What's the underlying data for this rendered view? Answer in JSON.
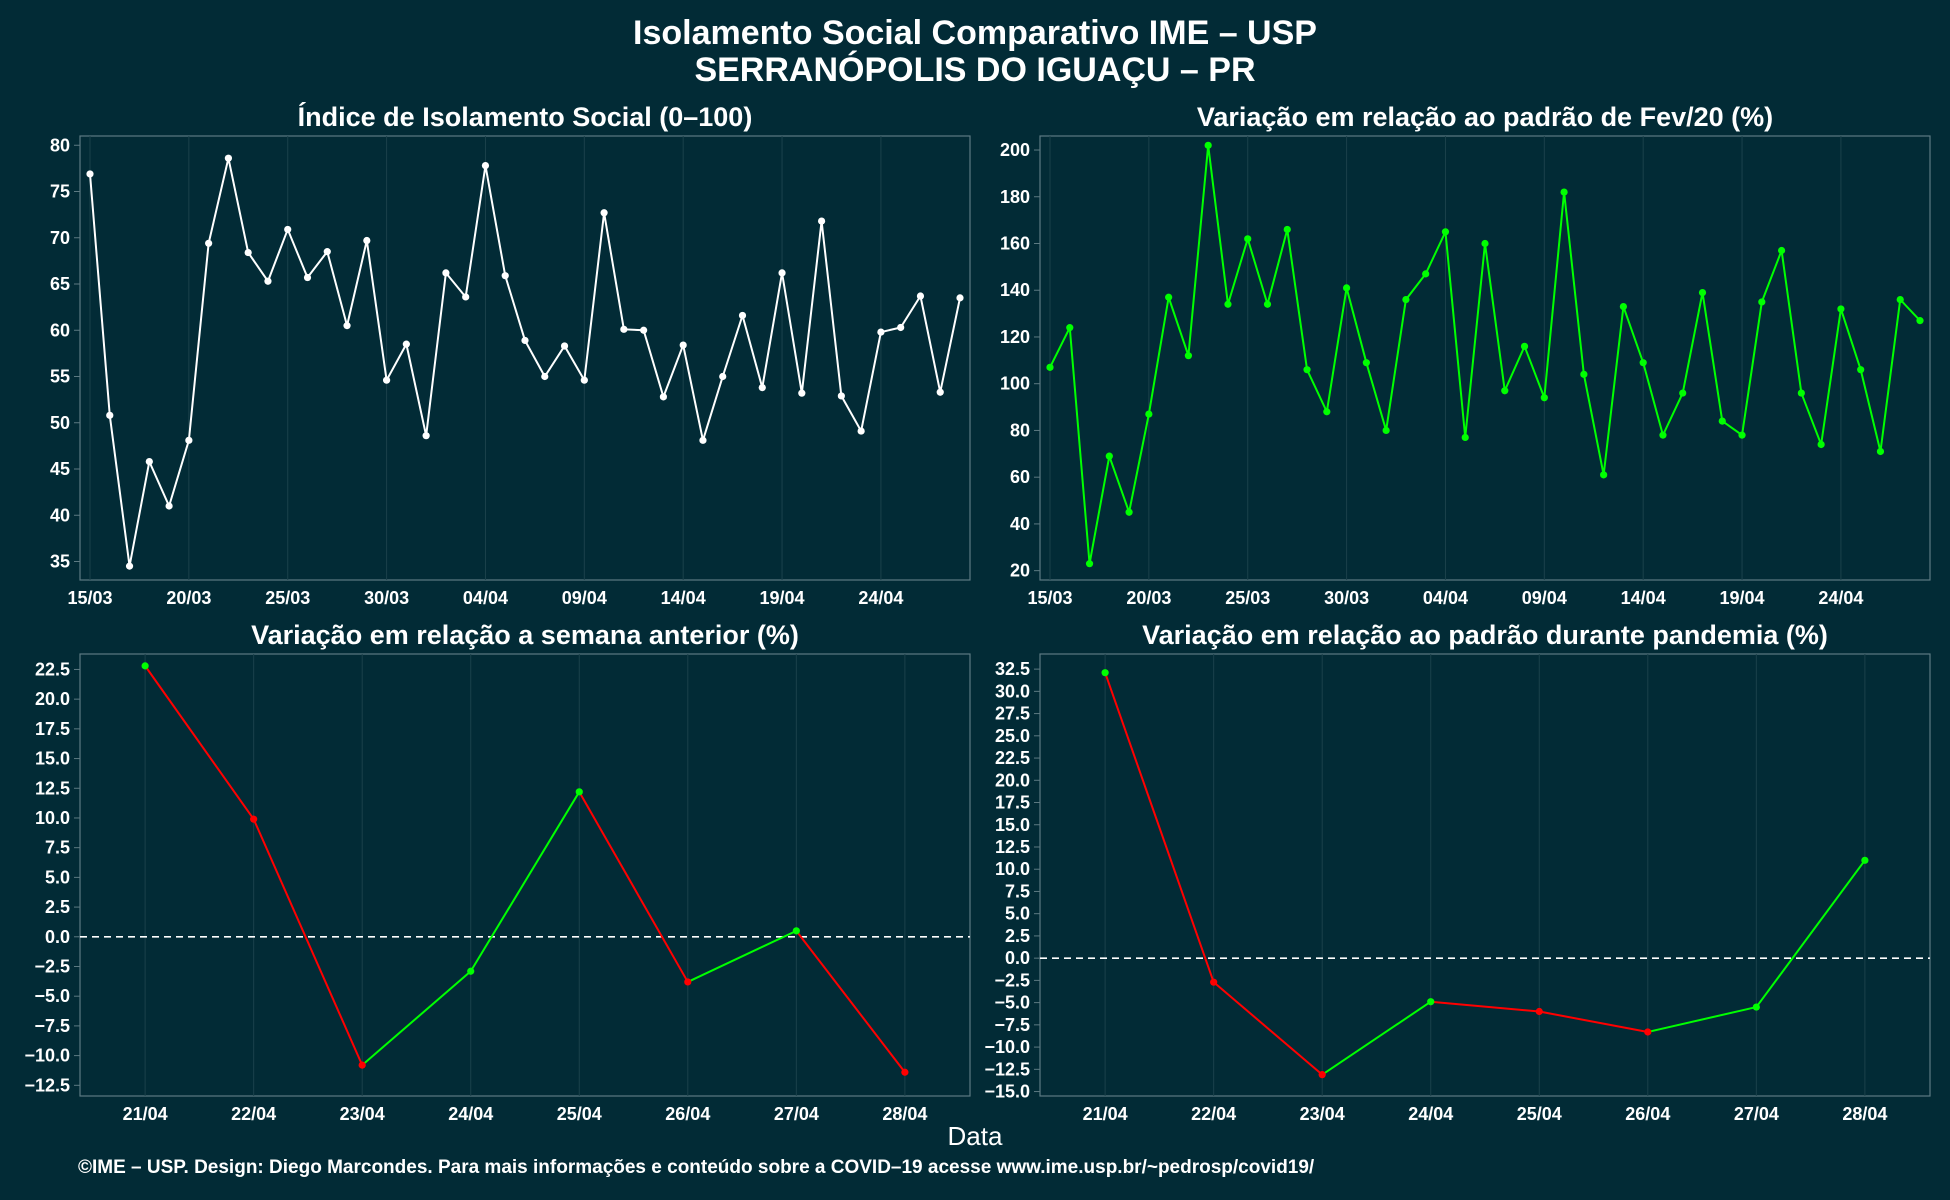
{
  "title_line1": "Isolamento Social Comparativo IME – USP",
  "title_line2": "SERRANÓPOLIS DO IGUAÇU – PR",
  "x_axis_title": "Data",
  "footer": "©IME – USP. Design: Diego Marcondes. Para mais informações e conteúdo sobre a COVID–19 acesse www.ime.usp.br/~pedrosp/covid19/",
  "colors": {
    "background": "#022b36",
    "white_series": "#ffffff",
    "positive": "#00ff00",
    "negative": "#ff0000",
    "zero_line": "#ffffff"
  },
  "chart_data": [
    {
      "type": "line",
      "title": "Índice de Isolamento Social (0–100)",
      "color": "white",
      "xtick_labels": [
        "15/03",
        "20/03",
        "25/03",
        "30/03",
        "04/04",
        "09/04",
        "14/04",
        "19/04",
        "24/04"
      ],
      "ylim": [
        33,
        81
      ],
      "yticks": [
        35,
        40,
        45,
        50,
        55,
        60,
        65,
        70,
        75,
        80
      ],
      "ytick_labels": [
        "35",
        "40",
        "45",
        "50",
        "55",
        "60",
        "65",
        "70",
        "75",
        "80"
      ],
      "values": [
        76.9,
        50.8,
        34.5,
        45.8,
        41.0,
        48.1,
        69.4,
        78.6,
        68.4,
        65.3,
        70.9,
        65.7,
        68.5,
        60.5,
        69.7,
        54.6,
        58.5,
        48.6,
        66.2,
        63.6,
        77.8,
        65.9,
        58.9,
        55.0,
        58.3,
        54.6,
        72.7,
        60.1,
        60.0,
        52.8,
        58.4,
        48.1,
        55.0,
        61.6,
        53.8,
        66.2,
        53.2,
        71.8,
        52.9,
        49.1,
        59.8,
        60.3,
        63.7,
        53.3,
        63.5
      ]
    },
    {
      "type": "line",
      "title": "Variação em relação ao padrão de Fev/20 (%)",
      "color": "green",
      "xtick_labels": [
        "15/03",
        "20/03",
        "25/03",
        "30/03",
        "04/04",
        "09/04",
        "14/04",
        "19/04",
        "24/04"
      ],
      "ylim": [
        16,
        206
      ],
      "yticks": [
        20,
        40,
        60,
        80,
        100,
        120,
        140,
        160,
        180,
        200
      ],
      "ytick_labels": [
        "20",
        "40",
        "60",
        "80",
        "100",
        "120",
        "140",
        "160",
        "180",
        "200"
      ],
      "values": [
        107,
        124,
        23,
        69,
        45,
        87,
        137,
        112,
        202,
        134,
        162,
        134,
        166,
        106,
        88,
        141,
        109,
        80,
        136,
        147,
        165,
        77,
        160,
        97,
        116,
        94,
        182,
        104,
        61,
        133,
        109,
        78,
        96,
        139,
        84,
        78,
        135,
        157,
        96,
        74,
        132,
        106,
        71,
        136,
        127
      ]
    },
    {
      "type": "line",
      "title": "Variação em relação a semana anterior (%)",
      "color": "sign",
      "x": [
        "21/04",
        "22/04",
        "23/04",
        "24/04",
        "25/04",
        "26/04",
        "27/04",
        "28/04"
      ],
      "ylim": [
        -13.4,
        23.8
      ],
      "yticks": [
        -12.5,
        -10,
        -7.5,
        -5,
        -2.5,
        0,
        2.5,
        5,
        7.5,
        10,
        12.5,
        15,
        17.5,
        20,
        22.5
      ],
      "ytick_labels": [
        "−12.5",
        "−10.0",
        "−7.5",
        "−5.0",
        "−2.5",
        "0.0",
        "2.5",
        "5.0",
        "7.5",
        "10.0",
        "12.5",
        "15.0",
        "17.5",
        "20.0",
        "22.5"
      ],
      "values": [
        22.8,
        9.9,
        -10.8,
        -2.9,
        12.2,
        -3.8,
        0.5,
        -11.4
      ]
    },
    {
      "type": "line",
      "title": "Variação em relação ao padrão durante pandemia (%)",
      "color": "sign",
      "x": [
        "21/04",
        "22/04",
        "23/04",
        "24/04",
        "25/04",
        "26/04",
        "27/04",
        "28/04"
      ],
      "ylim": [
        -15.5,
        34.2
      ],
      "yticks": [
        -15,
        -12.5,
        -10,
        -7.5,
        -5,
        -2.5,
        0,
        2.5,
        5,
        7.5,
        10,
        12.5,
        15,
        17.5,
        20,
        22.5,
        25,
        27.5,
        30,
        32.5
      ],
      "ytick_labels": [
        "−15.0",
        "−12.5",
        "−10.0",
        "−7.5",
        "−5.0",
        "−2.5",
        "0.0",
        "2.5",
        "5.0",
        "7.5",
        "10.0",
        "12.5",
        "15.0",
        "17.5",
        "20.0",
        "22.5",
        "25.0",
        "27.5",
        "30.0",
        "32.5"
      ],
      "values": [
        32.1,
        -2.7,
        -13.1,
        -4.9,
        -6.0,
        -8.3,
        -5.5,
        11.0
      ]
    }
  ]
}
